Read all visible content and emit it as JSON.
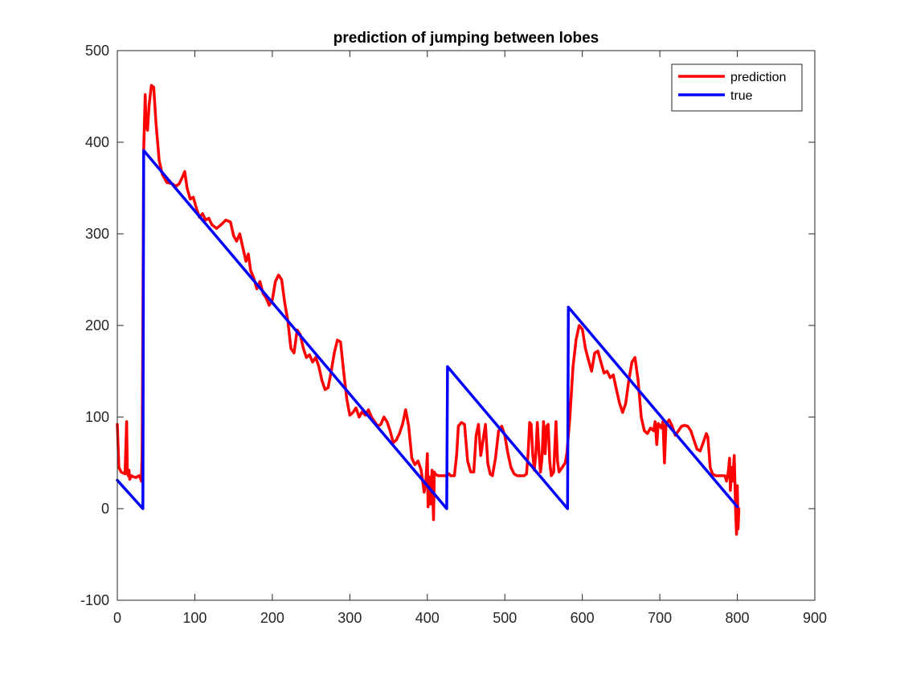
{
  "chart_data": {
    "type": "line",
    "title": "prediction of jumping between lobes",
    "xlabel": "",
    "ylabel": "",
    "xlim": [
      0,
      900
    ],
    "ylim": [
      -100,
      500
    ],
    "xticks": [
      0,
      100,
      200,
      300,
      400,
      500,
      600,
      700,
      800,
      900
    ],
    "yticks": [
      -100,
      0,
      100,
      200,
      300,
      400,
      500
    ],
    "grid": false,
    "legend_position": "top-right",
    "series": [
      {
        "name": "prediction",
        "color": "#ff0000",
        "points": [
          [
            0,
            92
          ],
          [
            2,
            45
          ],
          [
            5,
            40
          ],
          [
            10,
            38
          ],
          [
            12,
            95
          ],
          [
            13,
            40
          ],
          [
            14,
            36
          ],
          [
            15,
            42
          ],
          [
            16,
            32
          ],
          [
            18,
            36
          ],
          [
            20,
            35
          ],
          [
            24,
            34
          ],
          [
            28,
            36
          ],
          [
            30,
            33
          ],
          [
            31,
            30
          ],
          [
            32,
            60
          ],
          [
            33,
            200
          ],
          [
            34,
            390
          ],
          [
            36,
            452
          ],
          [
            37,
            420
          ],
          [
            39,
            413
          ],
          [
            41,
            440
          ],
          [
            44,
            462
          ],
          [
            47,
            460
          ],
          [
            50,
            420
          ],
          [
            54,
            380
          ],
          [
            58,
            365
          ],
          [
            64,
            356
          ],
          [
            70,
            355
          ],
          [
            76,
            352
          ],
          [
            80,
            355
          ],
          [
            84,
            362
          ],
          [
            87,
            368
          ],
          [
            90,
            350
          ],
          [
            94,
            338
          ],
          [
            98,
            340
          ],
          [
            102,
            328
          ],
          [
            106,
            318
          ],
          [
            110,
            322
          ],
          [
            114,
            315
          ],
          [
            118,
            317
          ],
          [
            122,
            310
          ],
          [
            128,
            306
          ],
          [
            134,
            310
          ],
          [
            140,
            315
          ],
          [
            146,
            313
          ],
          [
            150,
            298
          ],
          [
            154,
            292
          ],
          [
            158,
            300
          ],
          [
            162,
            285
          ],
          [
            166,
            270
          ],
          [
            169,
            278
          ],
          [
            172,
            260
          ],
          [
            176,
            252
          ],
          [
            180,
            240
          ],
          [
            184,
            248
          ],
          [
            188,
            235
          ],
          [
            192,
            230
          ],
          [
            196,
            222
          ],
          [
            200,
            228
          ],
          [
            204,
            248
          ],
          [
            208,
            255
          ],
          [
            212,
            250
          ],
          [
            216,
            225
          ],
          [
            220,
            205
          ],
          [
            224,
            175
          ],
          [
            228,
            170
          ],
          [
            232,
            195
          ],
          [
            236,
            190
          ],
          [
            240,
            175
          ],
          [
            244,
            165
          ],
          [
            248,
            168
          ],
          [
            252,
            160
          ],
          [
            256,
            165
          ],
          [
            260,
            155
          ],
          [
            264,
            140
          ],
          [
            268,
            130
          ],
          [
            272,
            132
          ],
          [
            276,
            150
          ],
          [
            280,
            170
          ],
          [
            284,
            184
          ],
          [
            288,
            182
          ],
          [
            292,
            150
          ],
          [
            296,
            120
          ],
          [
            300,
            102
          ],
          [
            304,
            105
          ],
          [
            308,
            110
          ],
          [
            312,
            100
          ],
          [
            316,
            106
          ],
          [
            320,
            102
          ],
          [
            324,
            108
          ],
          [
            328,
            100
          ],
          [
            332,
            95
          ],
          [
            336,
            90
          ],
          [
            340,
            92
          ],
          [
            344,
            100
          ],
          [
            348,
            95
          ],
          [
            352,
            85
          ],
          [
            356,
            72
          ],
          [
            360,
            75
          ],
          [
            364,
            82
          ],
          [
            368,
            92
          ],
          [
            372,
            108
          ],
          [
            376,
            90
          ],
          [
            380,
            55
          ],
          [
            384,
            48
          ],
          [
            388,
            52
          ],
          [
            392,
            42
          ],
          [
            396,
            18
          ],
          [
            398,
            28
          ],
          [
            400,
            60
          ],
          [
            401,
            2
          ],
          [
            402,
            35
          ],
          [
            404,
            5
          ],
          [
            406,
            42
          ],
          [
            408,
            -12
          ],
          [
            409,
            40
          ],
          [
            410,
            38
          ],
          [
            414,
            36
          ],
          [
            420,
            36
          ],
          [
            425,
            36
          ],
          [
            428,
            38
          ],
          [
            430,
            36
          ],
          [
            435,
            36
          ],
          [
            438,
            60
          ],
          [
            440,
            90
          ],
          [
            444,
            94
          ],
          [
            448,
            92
          ],
          [
            452,
            52
          ],
          [
            456,
            40
          ],
          [
            460,
            40
          ],
          [
            463,
            80
          ],
          [
            466,
            92
          ],
          [
            469,
            58
          ],
          [
            472,
            75
          ],
          [
            475,
            92
          ],
          [
            478,
            50
          ],
          [
            481,
            38
          ],
          [
            484,
            36
          ],
          [
            488,
            55
          ],
          [
            492,
            85
          ],
          [
            496,
            90
          ],
          [
            500,
            80
          ],
          [
            504,
            60
          ],
          [
            508,
            45
          ],
          [
            512,
            38
          ],
          [
            516,
            36
          ],
          [
            520,
            36
          ],
          [
            525,
            36
          ],
          [
            528,
            38
          ],
          [
            530,
            60
          ],
          [
            532,
            94
          ],
          [
            534,
            92
          ],
          [
            536,
            60
          ],
          [
            538,
            42
          ],
          [
            540,
            60
          ],
          [
            542,
            94
          ],
          [
            544,
            62
          ],
          [
            546,
            40
          ],
          [
            548,
            55
          ],
          [
            550,
            95
          ],
          [
            552,
            60
          ],
          [
            554,
            90
          ],
          [
            556,
            92
          ],
          [
            558,
            50
          ],
          [
            560,
            36
          ],
          [
            563,
            40
          ],
          [
            566,
            95
          ],
          [
            568,
            52
          ],
          [
            570,
            40
          ],
          [
            574,
            45
          ],
          [
            578,
            50
          ],
          [
            580,
            60
          ],
          [
            584,
            100
          ],
          [
            588,
            155
          ],
          [
            592,
            185
          ],
          [
            596,
            200
          ],
          [
            600,
            196
          ],
          [
            604,
            175
          ],
          [
            608,
            162
          ],
          [
            612,
            150
          ],
          [
            616,
            170
          ],
          [
            620,
            172
          ],
          [
            624,
            160
          ],
          [
            628,
            148
          ],
          [
            632,
            150
          ],
          [
            636,
            143
          ],
          [
            640,
            146
          ],
          [
            644,
            130
          ],
          [
            648,
            115
          ],
          [
            652,
            105
          ],
          [
            656,
            115
          ],
          [
            660,
            140
          ],
          [
            664,
            160
          ],
          [
            668,
            165
          ],
          [
            672,
            140
          ],
          [
            676,
            100
          ],
          [
            680,
            85
          ],
          [
            684,
            82
          ],
          [
            688,
            88
          ],
          [
            692,
            85
          ],
          [
            694,
            95
          ],
          [
            696,
            70
          ],
          [
            698,
            93
          ],
          [
            702,
            88
          ],
          [
            704,
            95
          ],
          [
            706,
            50
          ],
          [
            708,
            92
          ],
          [
            712,
            97
          ],
          [
            716,
            90
          ],
          [
            720,
            80
          ],
          [
            724,
            85
          ],
          [
            728,
            90
          ],
          [
            732,
            91
          ],
          [
            736,
            90
          ],
          [
            740,
            85
          ],
          [
            744,
            75
          ],
          [
            748,
            65
          ],
          [
            752,
            63
          ],
          [
            756,
            72
          ],
          [
            760,
            82
          ],
          [
            762,
            78
          ],
          [
            765,
            45
          ],
          [
            768,
            38
          ],
          [
            772,
            36
          ],
          [
            776,
            36
          ],
          [
            780,
            36
          ],
          [
            784,
            36
          ],
          [
            786,
            30
          ],
          [
            788,
            38
          ],
          [
            790,
            55
          ],
          [
            791,
            20
          ],
          [
            793,
            45
          ],
          [
            794,
            30
          ],
          [
            796,
            58
          ],
          [
            797,
            25
          ],
          [
            798,
            -8
          ],
          [
            799,
            -28
          ],
          [
            800,
            25
          ],
          [
            801,
            -22
          ],
          [
            802,
            0
          ]
        ]
      },
      {
        "name": "true",
        "color": "#0000ff",
        "points": [
          [
            0,
            31
          ],
          [
            33,
            0
          ],
          [
            34,
            391
          ],
          [
            425,
            0
          ],
          [
            426,
            155
          ],
          [
            581,
            0
          ],
          [
            582,
            220
          ],
          [
            800,
            2
          ]
        ]
      }
    ]
  }
}
